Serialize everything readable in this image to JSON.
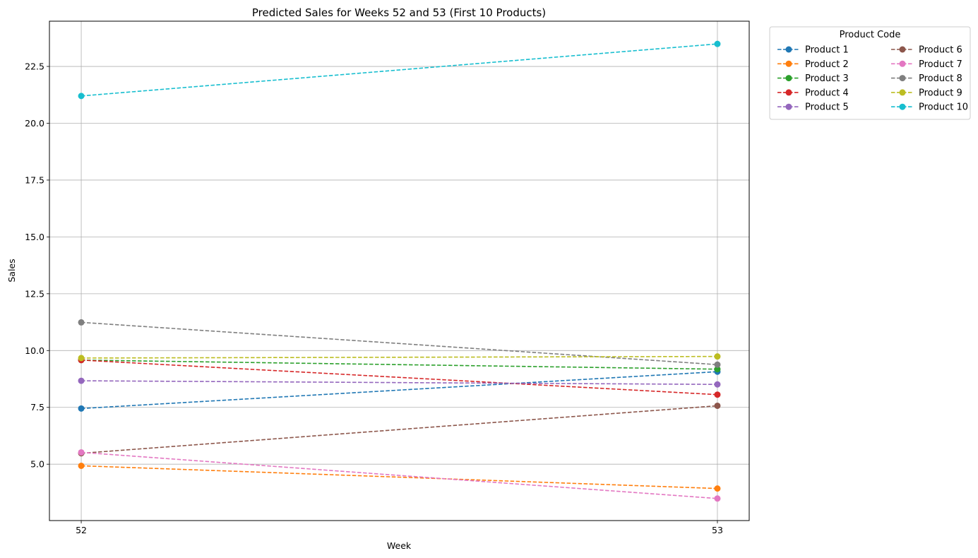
{
  "chart_data": {
    "type": "line",
    "title": "Predicted Sales for Weeks 52 and 53 (First 10 Products)",
    "xlabel": "Week",
    "ylabel": "Sales",
    "x": [
      52,
      53
    ],
    "xticks": [
      "52",
      "53"
    ],
    "xlim": [
      51.95,
      53.05
    ],
    "ylim": [
      2.52,
      24.49
    ],
    "yticks": [
      "5.0",
      "7.5",
      "10.0",
      "12.5",
      "15.0",
      "17.5",
      "20.0",
      "22.5"
    ],
    "ytick_values": [
      5.0,
      7.5,
      10.0,
      12.5,
      15.0,
      17.5,
      20.0,
      22.5
    ],
    "grid": true,
    "line_style": "dashed",
    "marker": "circle",
    "legend": {
      "title": "Product Code",
      "placement": "outside-top-right",
      "columns": 2
    },
    "series": [
      {
        "name": "Product 1",
        "color": "#1f77b4",
        "values": [
          7.45,
          9.07
        ]
      },
      {
        "name": "Product 2",
        "color": "#ff7f0e",
        "values": [
          4.93,
          3.93
        ]
      },
      {
        "name": "Product 3",
        "color": "#2ca02c",
        "values": [
          9.58,
          9.18
        ]
      },
      {
        "name": "Product 4",
        "color": "#d62728",
        "values": [
          9.58,
          8.06
        ]
      },
      {
        "name": "Product 5",
        "color": "#9467bd",
        "values": [
          8.67,
          8.51
        ]
      },
      {
        "name": "Product 6",
        "color": "#8c564b",
        "values": [
          5.48,
          7.57
        ]
      },
      {
        "name": "Product 7",
        "color": "#e377c2",
        "values": [
          5.52,
          3.49
        ]
      },
      {
        "name": "Product 8",
        "color": "#7f7f7f",
        "values": [
          11.24,
          9.38
        ]
      },
      {
        "name": "Product 9",
        "color": "#bcbd22",
        "values": [
          9.67,
          9.74
        ]
      },
      {
        "name": "Product 10",
        "color": "#17becf",
        "values": [
          21.2,
          23.49
        ]
      }
    ]
  }
}
